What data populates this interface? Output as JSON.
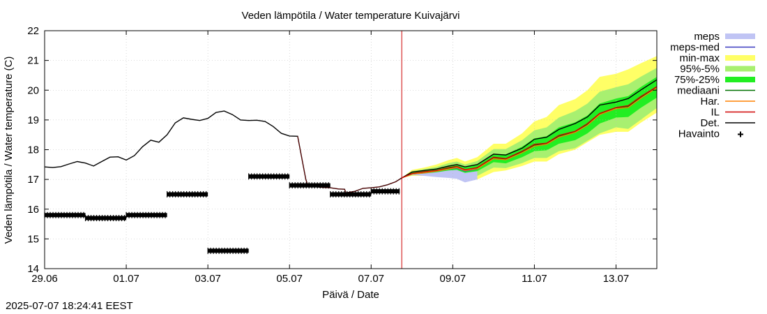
{
  "chart_data": {
    "type": "line",
    "title": "Veden lämpötila / Water temperature Kuivajärvi",
    "xlabel": "Päivä / Date",
    "ylabel": "Veden lämpötila / Water temperature (C)",
    "ylim": [
      14,
      22
    ],
    "yticks": [
      14,
      15,
      16,
      17,
      18,
      19,
      20,
      21,
      22
    ],
    "xlim": [
      0,
      15
    ],
    "xticks": [
      {
        "day": 0,
        "label": "29.06"
      },
      {
        "day": 2,
        "label": "01.07"
      },
      {
        "day": 4,
        "label": "03.07"
      },
      {
        "day": 6,
        "label": "05.07"
      },
      {
        "day": 8,
        "label": "07.07"
      },
      {
        "day": 10,
        "label": "09.07"
      },
      {
        "day": 12,
        "label": "11.07"
      },
      {
        "day": 14,
        "label": "13.07"
      }
    ],
    "forecast_start_day": 8.75,
    "legend": [
      {
        "label": "meps",
        "kind": "band",
        "color": "#c0c4f4"
      },
      {
        "label": "meps-med",
        "kind": "line",
        "color": "#3a3ac0"
      },
      {
        "label": "min-max",
        "kind": "band",
        "color": "#ffff66"
      },
      {
        "label": "95%-5%",
        "kind": "band",
        "color": "#a8f070"
      },
      {
        "label": "75%-25%",
        "kind": "band",
        "color": "#22ee22"
      },
      {
        "label": "mediaani",
        "kind": "line",
        "color": "#007000"
      },
      {
        "label": "Har.",
        "kind": "line",
        "color": "#ff8000"
      },
      {
        "label": "IL",
        "kind": "line",
        "color": "#d00000"
      },
      {
        "label": "Det.",
        "kind": "line",
        "color": "#000000"
      },
      {
        "label": "Havainto",
        "kind": "marker",
        "color": "#000000"
      }
    ],
    "series": [
      {
        "name": "Det. (history)",
        "x": [
          0,
          0.2,
          0.4,
          0.6,
          0.8,
          1.0,
          1.2,
          1.4,
          1.6,
          1.8,
          2.0,
          2.2,
          2.4,
          2.6,
          2.8,
          3.0,
          3.2,
          3.4,
          3.6,
          3.8,
          4.0,
          4.2,
          4.4,
          4.6,
          4.8,
          5.0,
          5.2,
          5.4,
          5.6,
          5.8,
          6.0,
          6.2,
          6.4,
          6.45,
          6.47,
          6.6,
          6.8,
          7.0,
          7.2,
          7.35,
          7.38,
          7.6,
          7.8,
          8.0,
          8.2,
          8.4,
          8.6,
          8.75
        ],
        "values": [
          17.42,
          17.4,
          17.43,
          17.52,
          17.6,
          17.55,
          17.45,
          17.6,
          17.75,
          17.76,
          17.65,
          17.8,
          18.1,
          18.32,
          18.25,
          18.5,
          18.9,
          19.07,
          19.02,
          18.98,
          19.05,
          19.25,
          19.3,
          19.18,
          19.0,
          18.98,
          18.99,
          18.95,
          18.78,
          18.55,
          18.46,
          18.45,
          17.0,
          16.8,
          16.78,
          16.76,
          16.73,
          16.72,
          16.68,
          16.67,
          16.55,
          16.6,
          16.7,
          16.72,
          16.75,
          16.82,
          16.92,
          17.05
        ]
      },
      {
        "name": "Det.",
        "x": [
          8.75,
          9.0,
          9.3,
          9.6,
          9.9,
          10.1,
          10.3,
          10.6,
          11.0,
          11.3,
          11.7,
          12.0,
          12.3,
          12.6,
          13.0,
          13.3,
          13.6,
          14.0,
          14.3,
          14.6,
          15.0
        ],
        "values": [
          17.05,
          17.25,
          17.3,
          17.35,
          17.45,
          17.5,
          17.42,
          17.5,
          17.85,
          17.82,
          18.05,
          18.35,
          18.42,
          18.68,
          18.88,
          19.1,
          19.5,
          19.6,
          19.72,
          20.0,
          20.35
        ]
      },
      {
        "name": "mediaani",
        "x": [
          8.75,
          9.0,
          9.3,
          9.6,
          9.9,
          10.1,
          10.3,
          10.6,
          11.0,
          11.3,
          11.7,
          12.0,
          12.3,
          12.6,
          13.0,
          13.3,
          13.6,
          14.0,
          14.3,
          14.6,
          15.0
        ],
        "values": [
          17.05,
          17.2,
          17.25,
          17.3,
          17.38,
          17.42,
          17.32,
          17.38,
          17.72,
          17.68,
          17.92,
          18.15,
          18.2,
          18.45,
          18.6,
          18.85,
          19.2,
          19.4,
          19.45,
          19.75,
          20.1
        ]
      },
      {
        "name": "Har.",
        "x": [
          8.75,
          9.0,
          9.3,
          9.6,
          9.9,
          10.1,
          10.3,
          10.6,
          11.0,
          11.3,
          11.7,
          12.0,
          12.3,
          12.6,
          13.0,
          13.3,
          13.6,
          14.0,
          14.3,
          14.6,
          15.0
        ],
        "values": [
          17.05,
          17.18,
          17.22,
          17.28,
          17.35,
          17.4,
          17.3,
          17.36,
          17.7,
          17.66,
          17.9,
          18.12,
          18.18,
          18.42,
          18.58,
          18.82,
          19.18,
          19.38,
          19.42,
          19.72,
          20.08
        ]
      },
      {
        "name": "IL",
        "x": [
          8.75,
          9.0,
          9.3,
          9.6,
          9.9,
          10.1,
          10.3,
          10.6,
          11.0,
          11.3,
          11.7,
          12.0,
          12.3,
          12.6,
          13.0,
          13.3,
          13.6,
          14.0,
          14.3,
          14.6,
          15.0
        ],
        "values": [
          17.05,
          17.2,
          17.26,
          17.3,
          17.4,
          17.44,
          17.33,
          17.4,
          17.75,
          17.7,
          17.95,
          18.18,
          18.22,
          18.48,
          18.62,
          18.88,
          19.22,
          19.42,
          19.48,
          19.78,
          20.12
        ]
      },
      {
        "name": "meps-med",
        "x": [
          8.75,
          9.0,
          9.3,
          9.6,
          9.9,
          10.1,
          10.3,
          10.6
        ],
        "values": [
          17.05,
          17.18,
          17.22,
          17.28,
          17.35,
          17.38,
          17.28,
          17.35
        ]
      }
    ],
    "bands": [
      {
        "name": "min-max",
        "x": [
          8.75,
          9.0,
          9.3,
          9.6,
          9.9,
          10.1,
          10.3,
          10.6,
          11.0,
          11.3,
          11.7,
          12.0,
          12.3,
          12.6,
          13.0,
          13.3,
          13.6,
          14.0,
          14.3,
          14.6,
          15.0
        ],
        "upper": [
          17.05,
          17.32,
          17.4,
          17.5,
          17.65,
          17.72,
          17.6,
          17.75,
          18.2,
          18.2,
          18.55,
          18.95,
          19.1,
          19.5,
          19.7,
          20.0,
          20.45,
          20.55,
          20.7,
          20.9,
          21.15
        ],
        "lower": [
          17.05,
          17.12,
          17.12,
          17.15,
          17.12,
          17.08,
          16.95,
          17.0,
          17.25,
          17.3,
          17.45,
          17.6,
          17.6,
          17.85,
          18.0,
          18.25,
          18.5,
          18.6,
          18.6,
          18.9,
          19.25
        ]
      },
      {
        "name": "95%-5%",
        "x": [
          8.75,
          9.0,
          9.3,
          9.6,
          9.9,
          10.1,
          10.3,
          10.6,
          11.0,
          11.3,
          11.7,
          12.0,
          12.3,
          12.6,
          13.0,
          13.3,
          13.6,
          14.0,
          14.3,
          14.6,
          15.0
        ],
        "upper": [
          17.05,
          17.28,
          17.35,
          17.42,
          17.55,
          17.6,
          17.5,
          17.62,
          18.02,
          18.02,
          18.32,
          18.65,
          18.75,
          19.08,
          19.3,
          19.55,
          19.95,
          20.1,
          20.2,
          20.45,
          20.75
        ],
        "lower": [
          17.05,
          17.14,
          17.15,
          17.18,
          17.2,
          17.2,
          17.1,
          17.12,
          17.4,
          17.38,
          17.55,
          17.72,
          17.72,
          17.95,
          18.05,
          18.3,
          18.55,
          18.75,
          18.7,
          19.0,
          19.4
        ]
      },
      {
        "name": "75%-25%",
        "x": [
          8.75,
          9.0,
          9.3,
          9.6,
          9.9,
          10.1,
          10.3,
          10.6,
          11.0,
          11.3,
          11.7,
          12.0,
          12.3,
          12.6,
          13.0,
          13.3,
          13.6,
          14.0,
          14.3,
          14.6,
          15.0
        ],
        "upper": [
          17.05,
          17.24,
          17.3,
          17.36,
          17.46,
          17.5,
          17.4,
          17.5,
          17.86,
          17.84,
          18.1,
          18.38,
          18.45,
          18.75,
          18.92,
          19.15,
          19.55,
          19.72,
          19.8,
          20.1,
          20.45
        ],
        "lower": [
          17.05,
          17.16,
          17.2,
          17.24,
          17.3,
          17.32,
          17.22,
          17.28,
          17.58,
          17.54,
          17.75,
          17.95,
          17.98,
          18.2,
          18.32,
          18.55,
          18.88,
          19.08,
          19.1,
          19.4,
          19.75
        ]
      },
      {
        "name": "meps",
        "x": [
          8.75,
          9.0,
          9.3,
          9.6,
          9.9,
          10.1,
          10.3,
          10.6
        ],
        "upper": [
          17.05,
          17.24,
          17.28,
          17.34,
          17.42,
          17.45,
          17.36,
          17.44
        ],
        "lower": [
          17.05,
          17.15,
          17.12,
          17.08,
          17.05,
          17.02,
          16.9,
          17.0
        ]
      }
    ],
    "observations": [
      {
        "x0": 0.0,
        "x1": 1.0,
        "value": 15.8
      },
      {
        "x0": 1.0,
        "x1": 2.0,
        "value": 15.7
      },
      {
        "x0": 2.0,
        "x1": 3.0,
        "value": 15.8
      },
      {
        "x0": 3.0,
        "x1": 4.0,
        "value": 16.5
      },
      {
        "x0": 4.0,
        "x1": 5.0,
        "value": 14.6
      },
      {
        "x0": 5.0,
        "x1": 6.0,
        "value": 17.1
      },
      {
        "x0": 6.0,
        "x1": 7.0,
        "value": 16.8
      },
      {
        "x0": 7.0,
        "x1": 8.0,
        "value": 16.5
      },
      {
        "x0": 8.0,
        "x1": 8.7,
        "value": 16.6
      }
    ]
  },
  "footer": {
    "timestamp": "2025-07-07 18:24:41 EEST"
  }
}
